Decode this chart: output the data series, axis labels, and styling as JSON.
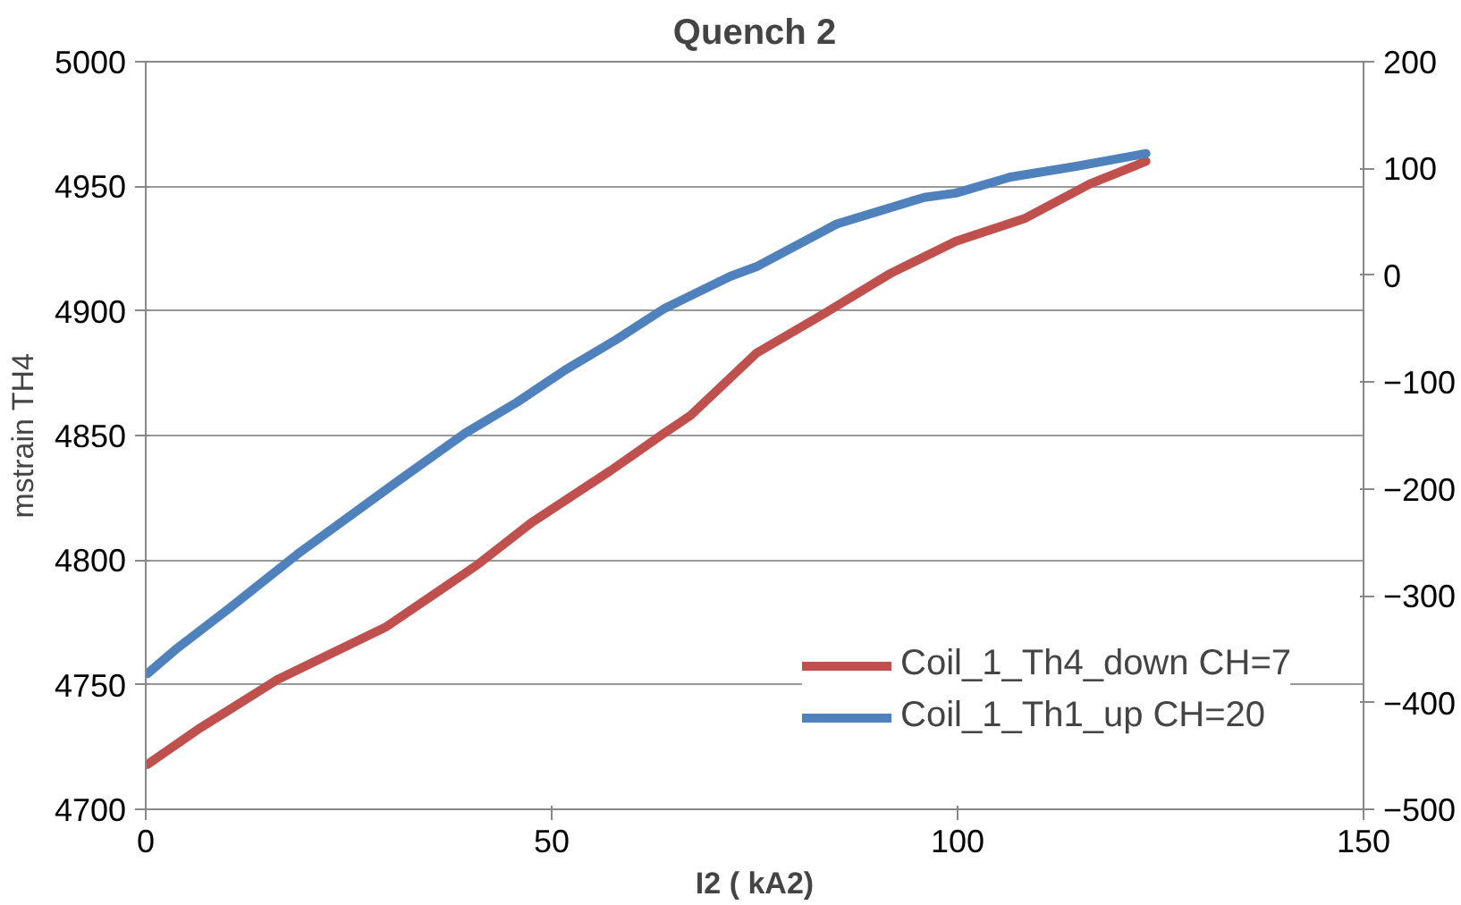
{
  "chart_data": {
    "type": "line",
    "title": "Quench 2",
    "xlabel": "I2 ( kA2)",
    "ylabel": "mstrain TH4",
    "xlim": [
      0,
      150
    ],
    "xticks": [
      0,
      50,
      100,
      150
    ],
    "ylim": [
      4700,
      5000
    ],
    "yticks": [
      4700,
      4750,
      4800,
      4850,
      4900,
      4950,
      5000
    ],
    "y2lim": [
      -500,
      200
    ],
    "y2ticks": [
      -500,
      -400,
      -300,
      -200,
      -100,
      0,
      100,
      200
    ],
    "grid": "y",
    "legend": "bottom right",
    "marker": "none",
    "line_style": "solid",
    "series": [
      {
        "name": "Coil_1_Th4_down CH=7",
        "color": "#c0504d",
        "x": [
          0.2,
          6.4,
          16.2,
          29.5,
          40.8,
          47.5,
          57.3,
          63.9,
          67.1,
          75.2,
          83.6,
          91.7,
          99.8,
          108.2,
          116.3,
          123.2
        ],
        "values": [
          4718,
          4732,
          4752,
          4773,
          4798,
          4815,
          4836,
          4851,
          4858,
          4883,
          4899,
          4915,
          4928,
          4937,
          4951,
          4960
        ]
      },
      {
        "name": "Coil_1_Th1_up CH=20",
        "color": "#4f81bd",
        "axis": "y2",
        "x": [
          0.2,
          3.9,
          10.6,
          18.7,
          31.0,
          39.3,
          45.7,
          51.6,
          58.0,
          63.9,
          72.0,
          75.2,
          85.1,
          95.9,
          99.8,
          106.5,
          114.6,
          123.2
        ],
        "values": [
          -373,
          -349,
          -310,
          -261,
          -193,
          -148,
          -119,
          -89,
          -60,
          -31,
          -1,
          8,
          48,
          73,
          77,
          92,
          102,
          114
        ]
      }
    ]
  }
}
